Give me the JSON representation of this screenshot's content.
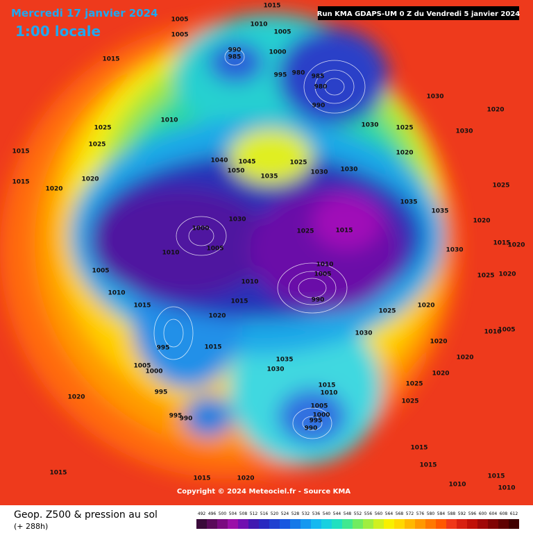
{
  "header": {
    "date": "Mercredi 17 janvier 2024",
    "time": "1:00 locale",
    "run": "Run KMA GDAPS-UM 0 Z du Vendredi 5 janvier 2024"
  },
  "map": {
    "pressure_labels": [
      1015,
      1010,
      1005,
      1005,
      1005,
      990,
      985,
      1000,
      995,
      980,
      985,
      980,
      990,
      1015,
      1015,
      1015,
      1025,
      1025,
      1010,
      1020,
      1020,
      1040,
      1045,
      1050,
      1035,
      1025,
      1030,
      1030,
      1030,
      1000,
      1005,
      1010,
      1005,
      1010,
      1015,
      1025,
      1015,
      1010,
      1005,
      990,
      1010,
      1015,
      1020,
      1030,
      1025,
      1015,
      995,
      1000,
      1005,
      995,
      990,
      995,
      1020,
      1015,
      1015,
      1020,
      1035,
      1030,
      1015,
      1010,
      1005,
      1000,
      995,
      990,
      1025,
      1025,
      1015,
      1015,
      1010,
      1015,
      1010,
      1020,
      1025,
      1020,
      1030,
      1030,
      1020,
      1025,
      1020,
      1015,
      1020,
      1035,
      1035,
      1030,
      1025,
      1020,
      1020,
      1010,
      1005,
      1020,
      1020,
      1030
    ],
    "copyright": "Copyright © 2024 Meteociel.fr - Source KMA"
  },
  "footer": {
    "title": "Geop. Z500 & pression au sol",
    "lead": "(+ 288h)",
    "scale": [
      492,
      496,
      500,
      504,
      508,
      512,
      516,
      520,
      524,
      528,
      532,
      536,
      540,
      544,
      548,
      552,
      556,
      560,
      564,
      568,
      572,
      576,
      580,
      584,
      588,
      592,
      596,
      600,
      604,
      608,
      612
    ]
  }
}
